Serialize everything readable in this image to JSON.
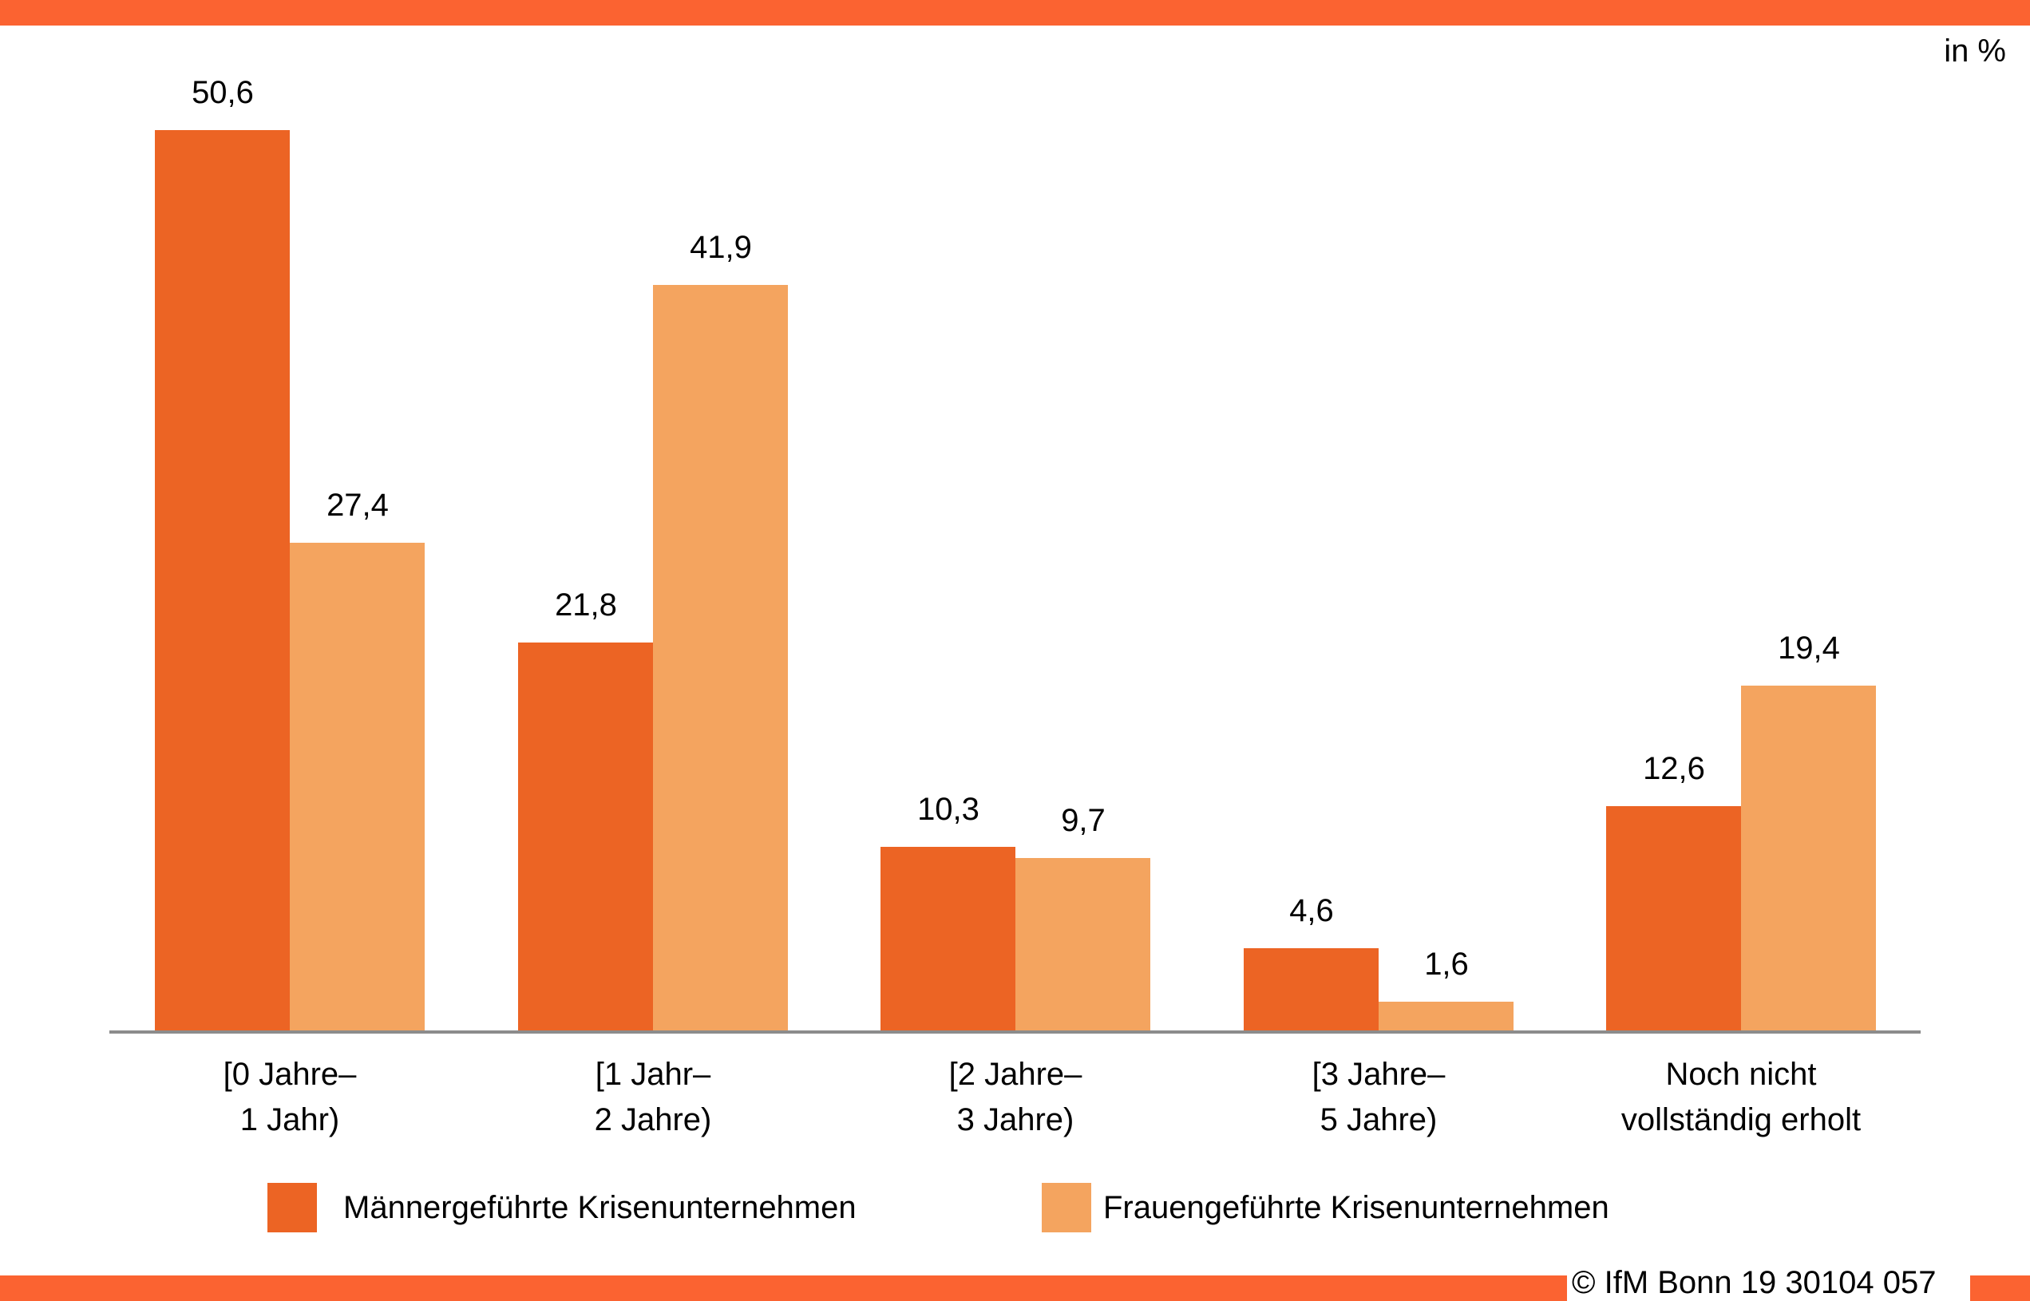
{
  "header": {
    "unit_label": "in %"
  },
  "footer": {
    "copyright": "© IfM Bonn 19 30104 057"
  },
  "colors": {
    "band": "#FB6331",
    "series1": "#EC6424",
    "series2": "#F4A45F",
    "axis": "#8C8C8C",
    "text": "#000000",
    "background": "#FFFFFF"
  },
  "chart_data": {
    "type": "bar",
    "title": "",
    "unit": "%",
    "categories": [
      "[0 Jahre–1 Jahr)",
      "[1 Jahr–2 Jahre)",
      "[2 Jahre–3 Jahre)",
      "[3 Jahre–5 Jahre)",
      "Noch nicht vollständig erholt"
    ],
    "category_lines": [
      [
        "[0 Jahre–",
        "1 Jahr)"
      ],
      [
        "[1 Jahr–",
        "2 Jahre)"
      ],
      [
        "[2 Jahre–",
        "3 Jahre)"
      ],
      [
        "[3 Jahre–",
        "5 Jahre)"
      ],
      [
        "Noch nicht",
        "vollständig erholt"
      ]
    ],
    "series": [
      {
        "name": "Männergeführte Krisenunternehmen",
        "color": "#EC6424",
        "values": [
          50.6,
          21.8,
          10.3,
          4.6,
          12.6
        ],
        "value_labels": [
          "50,6",
          "21,8",
          "10,3",
          "4,6",
          "12,6"
        ]
      },
      {
        "name": "Frauengeführte Krisenunternehmen",
        "color": "#F4A45F",
        "values": [
          27.4,
          41.9,
          9.7,
          1.6,
          19.4
        ],
        "value_labels": [
          "27,4",
          "41,9",
          "9,7",
          "1,6",
          "19,4"
        ]
      }
    ],
    "ylim": [
      0,
      55
    ],
    "grid": false,
    "y_axis_visible": false,
    "value_labels_visible": true,
    "value_label_decimal": "comma",
    "legend_position": "bottom"
  }
}
